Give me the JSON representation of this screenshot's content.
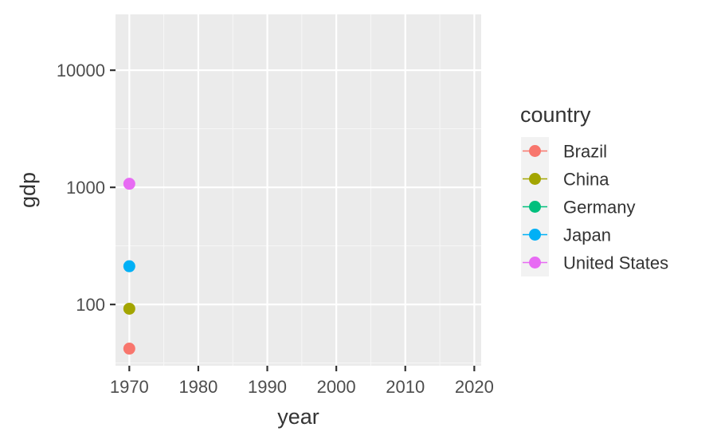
{
  "chart_data": {
    "type": "scatter",
    "xlabel": "year",
    "ylabel": "gdp",
    "y_scale": "log10",
    "xlim": [
      1968,
      2021
    ],
    "ylim": [
      30,
      30000
    ],
    "x_ticks": [
      {
        "value": 1970,
        "label": "1970"
      },
      {
        "value": 1980,
        "label": "1980"
      },
      {
        "value": 1990,
        "label": "1990"
      },
      {
        "value": 2000,
        "label": "2000"
      },
      {
        "value": 2010,
        "label": "2010"
      },
      {
        "value": 2020,
        "label": "2020"
      }
    ],
    "y_ticks": [
      {
        "value": 100,
        "label": "100"
      },
      {
        "value": 1000,
        "label": "1000"
      },
      {
        "value": 10000,
        "label": "10000"
      }
    ],
    "grid": true,
    "legend": {
      "title": "country",
      "position": "right",
      "entries": [
        {
          "name": "Brazil",
          "color": "#F8766D"
        },
        {
          "name": "China",
          "color": "#A3A500"
        },
        {
          "name": "Germany",
          "color": "#00BF7D"
        },
        {
          "name": "Japan",
          "color": "#00B0F6"
        },
        {
          "name": "United States",
          "color": "#E76BF3"
        }
      ]
    },
    "series": [
      {
        "name": "Brazil",
        "color": "#F8766D",
        "points": [
          {
            "x": 1970,
            "y": 42
          }
        ]
      },
      {
        "name": "China",
        "color": "#A3A500",
        "points": [
          {
            "x": 1970,
            "y": 92
          }
        ]
      },
      {
        "name": "Japan",
        "color": "#00B0F6",
        "points": [
          {
            "x": 1970,
            "y": 212
          }
        ]
      },
      {
        "name": "United States",
        "color": "#E76BF3",
        "points": [
          {
            "x": 1970,
            "y": 1073
          }
        ]
      }
    ]
  }
}
